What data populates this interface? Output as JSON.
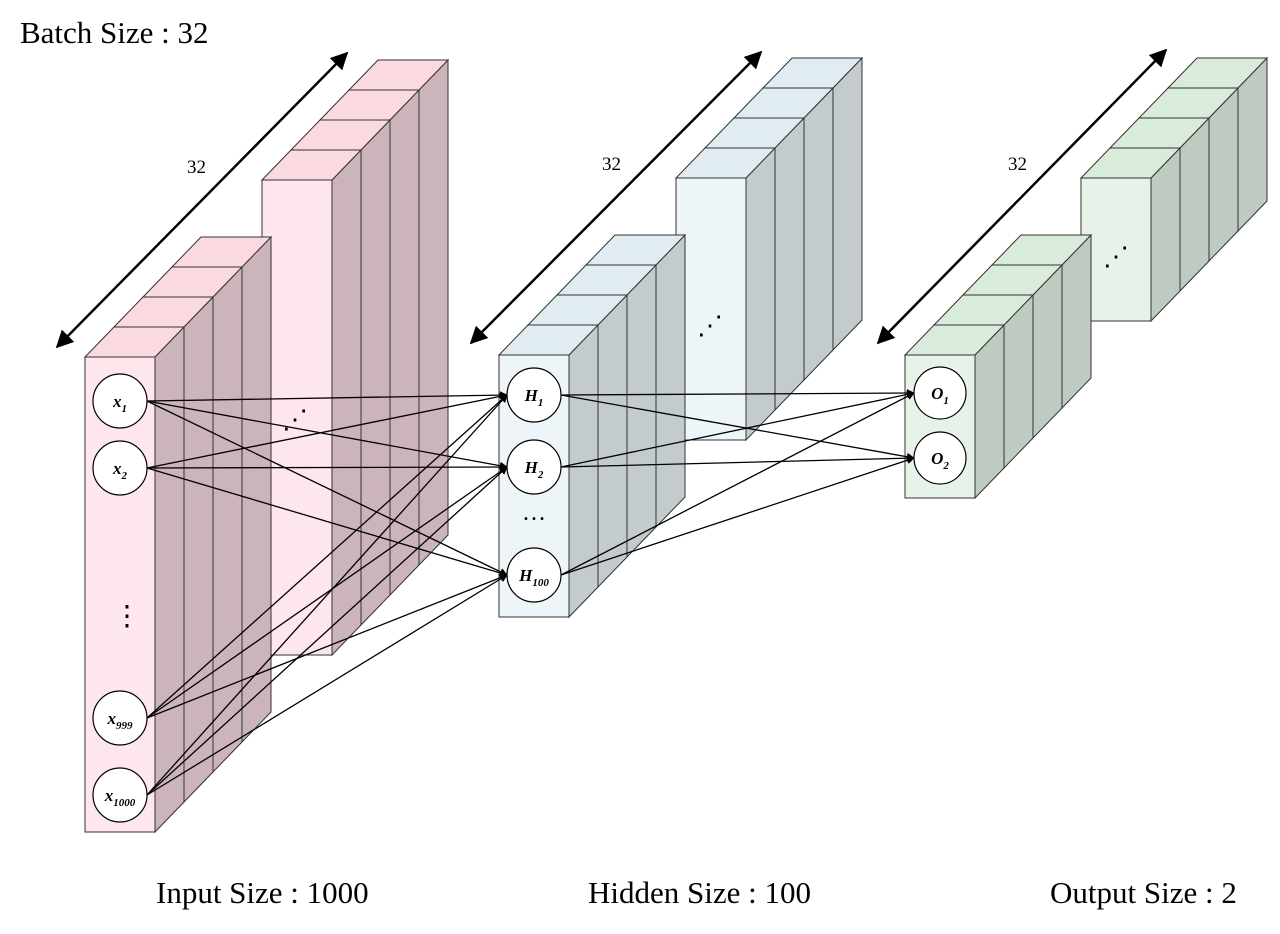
{
  "title": "Batch Size : 32",
  "depth_label": "32",
  "layers": {
    "input": {
      "caption": "Input Size : 1000",
      "face_color": "#fde6ec",
      "side_color": "#cbb5ba",
      "top_color": "#fbd9e1",
      "nodes": [
        {
          "base": "x",
          "sub": "1"
        },
        {
          "base": "x",
          "sub": "2"
        },
        {
          "base": "x",
          "sub": "999"
        },
        {
          "base": "x",
          "sub": "1000"
        }
      ]
    },
    "hidden": {
      "caption": "Hidden Size : 100",
      "face_color": "#eef5f9",
      "side_color": "#c3cbcf",
      "top_color": "#e1ecf2",
      "nodes": [
        {
          "base": "H",
          "sub": "1"
        },
        {
          "base": "H",
          "sub": "2"
        },
        {
          "base": "H",
          "sub": "100"
        }
      ]
    },
    "output": {
      "caption": "Output Size : 2",
      "face_color": "#e7f2e8",
      "side_color": "#bfcbc0",
      "top_color": "#d9ebdb",
      "nodes": [
        {
          "base": "O",
          "sub": "1"
        },
        {
          "base": "O",
          "sub": "2"
        }
      ]
    }
  },
  "ellipsis": "⋮",
  "ellipsis_h": "…",
  "ellipsis_diag": "⋰"
}
